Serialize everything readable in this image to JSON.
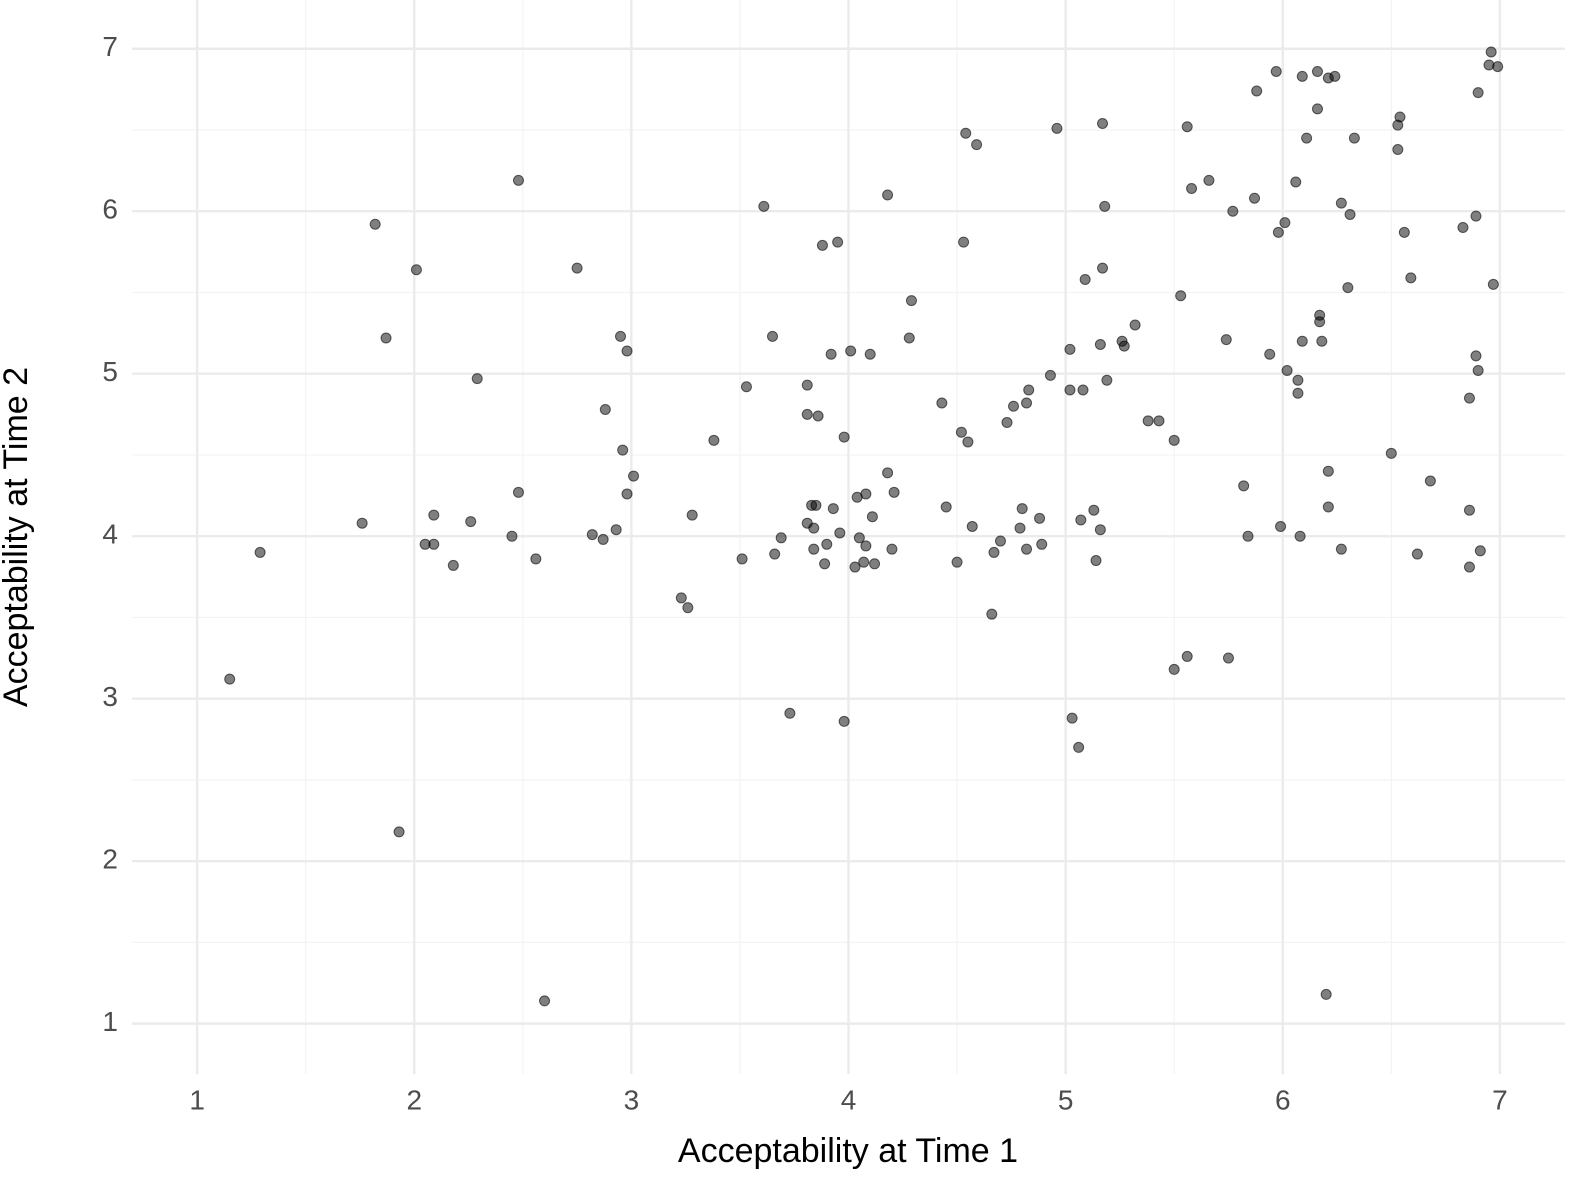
{
  "chart_data": {
    "type": "scatter",
    "x_label": "Acceptability at Time 1",
    "y_label": "Acceptability at Time 2",
    "xlim": [
      0.7,
      7.3
    ],
    "ylim": [
      0.69,
      7.3
    ],
    "xticks": [
      1,
      2,
      3,
      4,
      5,
      6,
      7
    ],
    "yticks": [
      1,
      2,
      3,
      4,
      5,
      6,
      7
    ],
    "xminor": [
      1.5,
      2.5,
      3.5,
      4.5,
      5.5,
      6.5
    ],
    "yminor": [
      1.5,
      2.5,
      3.5,
      4.5,
      5.5,
      6.5
    ],
    "grid": true,
    "color": "#000000",
    "x": [
      1.15,
      1.29,
      1.76,
      1.82,
      1.87,
      1.93,
      2.01,
      2.05,
      2.09,
      2.09,
      2.18,
      2.26,
      2.29,
      2.45,
      2.48,
      2.48,
      2.56,
      2.6,
      2.75,
      2.82,
      2.87,
      2.88,
      2.93,
      2.95,
      2.96,
      2.98,
      2.98,
      3.01,
      3.23,
      3.26,
      3.28,
      3.38,
      3.51,
      3.53,
      3.61,
      3.65,
      3.66,
      3.69,
      3.73,
      3.81,
      3.81,
      3.81,
      3.83,
      3.84,
      3.85,
      3.84,
      3.86,
      3.88,
      3.89,
      3.9,
      3.92,
      3.93,
      3.95,
      3.96,
      3.98,
      3.98,
      4.01,
      4.03,
      4.04,
      4.05,
      4.07,
      4.08,
      4.08,
      4.1,
      4.11,
      4.12,
      4.18,
      4.18,
      4.2,
      4.21,
      4.28,
      4.29,
      4.43,
      4.45,
      4.5,
      4.52,
      4.53,
      4.54,
      4.55,
      4.57,
      4.59,
      4.66,
      4.67,
      4.7,
      4.73,
      4.76,
      4.79,
      4.8,
      4.82,
      4.82,
      4.83,
      4.88,
      4.89,
      4.93,
      4.96,
      5.02,
      5.02,
      5.03,
      5.06,
      5.07,
      5.08,
      5.09,
      5.13,
      5.14,
      5.16,
      5.16,
      5.17,
      5.18,
      5.17,
      5.19,
      5.26,
      5.27,
      5.32,
      5.38,
      5.43,
      5.5,
      5.5,
      5.53,
      5.56,
      5.56,
      5.58,
      5.66,
      5.74,
      5.75,
      5.77,
      5.82,
      5.84,
      5.87,
      5.88,
      5.94,
      5.97,
      5.98,
      5.99,
      6.01,
      6.02,
      6.06,
      6.07,
      6.07,
      6.08,
      6.09,
      6.09,
      6.11,
      6.16,
      6.16,
      6.17,
      6.17,
      6.18,
      6.2,
      6.21,
      6.21,
      6.21,
      6.24,
      6.27,
      6.27,
      6.3,
      6.31,
      6.33,
      6.5,
      6.53,
      6.54,
      6.53,
      6.56,
      6.59,
      6.62,
      6.68,
      6.83,
      6.86,
      6.86,
      6.86,
      6.89,
      6.89,
      6.9,
      6.9,
      6.91,
      6.95,
      6.96,
      6.97,
      6.99
    ],
    "values": [
      3.12,
      3.9,
      4.08,
      5.92,
      5.22,
      2.18,
      5.64,
      3.95,
      3.95,
      4.13,
      3.82,
      4.09,
      4.97,
      4.0,
      4.27,
      6.19,
      3.86,
      1.14,
      5.65,
      4.01,
      3.98,
      4.78,
      4.04,
      5.23,
      4.53,
      5.14,
      4.26,
      4.37,
      3.62,
      3.56,
      4.13,
      4.59,
      3.86,
      4.92,
      6.03,
      5.23,
      3.89,
      3.99,
      2.91,
      4.93,
      4.75,
      4.08,
      4.19,
      4.05,
      4.19,
      3.92,
      4.74,
      5.79,
      3.83,
      3.95,
      5.12,
      4.17,
      5.81,
      4.02,
      4.61,
      2.86,
      5.14,
      3.81,
      4.24,
      3.99,
      3.84,
      4.26,
      3.94,
      5.12,
      4.12,
      3.83,
      6.1,
      4.39,
      3.92,
      4.27,
      5.22,
      5.45,
      4.82,
      4.18,
      3.84,
      4.64,
      5.81,
      6.48,
      4.58,
      4.06,
      6.41,
      3.52,
      3.9,
      3.97,
      4.7,
      4.8,
      4.05,
      4.17,
      3.92,
      4.82,
      4.9,
      4.11,
      3.95,
      4.99,
      6.51,
      5.15,
      4.9,
      2.88,
      2.7,
      4.1,
      4.9,
      5.58,
      4.16,
      3.85,
      5.18,
      4.04,
      6.54,
      6.03,
      5.65,
      4.96,
      5.2,
      5.17,
      5.3,
      4.71,
      4.71,
      4.59,
      3.18,
      5.48,
      3.26,
      6.52,
      6.14,
      6.19,
      5.21,
      3.25,
      6.0,
      4.31,
      4.0,
      6.08,
      6.74,
      5.12,
      6.86,
      5.87,
      4.06,
      5.93,
      5.02,
      6.18,
      4.96,
      4.88,
      4.0,
      5.2,
      6.83,
      6.45,
      6.86,
      6.63,
      5.36,
      5.32,
      5.2,
      1.18,
      4.18,
      4.4,
      6.82,
      6.83,
      3.92,
      6.05,
      5.53,
      5.98,
      6.45,
      4.51,
      6.53,
      6.58,
      6.38,
      5.87,
      5.59,
      3.89,
      4.34,
      5.9,
      4.85,
      4.16,
      3.81,
      5.97,
      5.11,
      5.02,
      6.73,
      3.91,
      6.9,
      6.98,
      5.55,
      6.89
    ]
  }
}
